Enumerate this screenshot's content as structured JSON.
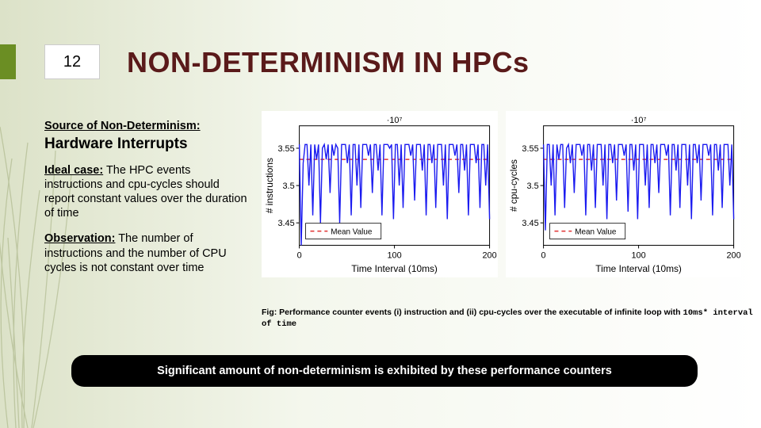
{
  "page_number": "12",
  "title": "NON-DETERMINISM IN HPCs",
  "left": {
    "source_label": "Source of Non-Determinism:",
    "hw_interrupts": "Hardware Interrupts",
    "ideal_label": "Ideal case:",
    "ideal_text": " The HPC events instructions and cpu-cycles should report constant values over the duration of time",
    "obs_label": "Observation:",
    "obs_text": " The number of instructions and the number of CPU cycles is not constant over time"
  },
  "caption": {
    "prefix": "Fig: Performance counter events (i) instruction and (ii) cpu-cycles over the executable of infinite loop with ",
    "mono": "10ms* interval of time"
  },
  "callout": "Significant amount of non-determinism is exhibited by these performance counters",
  "chart1": {
    "type": "line",
    "ylabel": "# instructions",
    "xlabel": "Time Interval (10ms)",
    "y_exponent": "·10⁷",
    "xlim": [
      0,
      200
    ],
    "xticks": [
      0,
      100,
      200
    ],
    "ylim": [
      3.42,
      3.58
    ],
    "yticks": [
      3.45,
      3.5,
      3.55
    ],
    "mean": 3.535,
    "legend": "Mean Value",
    "line_color": "#1a1af0",
    "mean_color": "#e03030",
    "axis_color": "#000000",
    "background": "#ffffff",
    "y_title_fontsize": 12,
    "x_title_fontsize": 12,
    "tick_fontsize": 11,
    "line_width": 1.4,
    "mean_dash": "5,4",
    "series": [
      3.555,
      3.42,
      3.53,
      3.555,
      3.555,
      3.5,
      3.555,
      3.46,
      3.555,
      3.535,
      3.555,
      3.45,
      3.55,
      3.555,
      3.535,
      3.555,
      3.49,
      3.555,
      3.54,
      3.555,
      3.55,
      3.45,
      3.555,
      3.555,
      3.555,
      3.53,
      3.555,
      3.46,
      3.555,
      3.555,
      3.5,
      3.555,
      3.47,
      3.555,
      3.555,
      3.555,
      3.54,
      3.555,
      3.49,
      3.555,
      3.555,
      3.52,
      3.555,
      3.46,
      3.555,
      3.555,
      3.555,
      3.55,
      3.555,
      3.455,
      3.555,
      3.555,
      3.5,
      3.555,
      3.47,
      3.555,
      3.555,
      3.555,
      3.54,
      3.555,
      3.48,
      3.555,
      3.555,
      3.555,
      3.52,
      3.555,
      3.46,
      3.555,
      3.555,
      3.53,
      3.555,
      3.47,
      3.555,
      3.555,
      3.555,
      3.5,
      3.555,
      3.455,
      3.555,
      3.555,
      3.555,
      3.54,
      3.555,
      3.49,
      3.555,
      3.555,
      3.52,
      3.555,
      3.46,
      3.555,
      3.555,
      3.555,
      3.53,
      3.555,
      3.47,
      3.555,
      3.555,
      3.5,
      3.555,
      3.455
    ]
  },
  "chart2": {
    "type": "line",
    "ylabel": "# cpu-cycles",
    "xlabel": "Time Interval (10ms)",
    "y_exponent": "·10⁷",
    "xlim": [
      0,
      200
    ],
    "xticks": [
      0,
      100,
      200
    ],
    "ylim": [
      3.42,
      3.58
    ],
    "yticks": [
      3.45,
      3.5,
      3.55
    ],
    "mean": 3.535,
    "legend": "Mean Value",
    "line_color": "#1a1af0",
    "mean_color": "#e03030",
    "axis_color": "#000000",
    "background": "#ffffff",
    "y_title_fontsize": 12,
    "x_title_fontsize": 12,
    "tick_fontsize": 11,
    "line_width": 1.4,
    "mean_dash": "5,4",
    "series": [
      3.555,
      3.44,
      3.555,
      3.555,
      3.5,
      3.555,
      3.46,
      3.555,
      3.535,
      3.555,
      3.555,
      3.47,
      3.55,
      3.555,
      3.53,
      3.555,
      3.49,
      3.555,
      3.555,
      3.555,
      3.54,
      3.555,
      3.46,
      3.555,
      3.555,
      3.52,
      3.555,
      3.47,
      3.555,
      3.555,
      3.555,
      3.5,
      3.555,
      3.455,
      3.555,
      3.555,
      3.53,
      3.555,
      3.48,
      3.555,
      3.555,
      3.555,
      3.54,
      3.555,
      3.465,
      3.555,
      3.555,
      3.52,
      3.555,
      3.455,
      3.555,
      3.555,
      3.555,
      3.5,
      3.555,
      3.47,
      3.555,
      3.555,
      3.53,
      3.555,
      3.49,
      3.555,
      3.555,
      3.555,
      3.54,
      3.555,
      3.46,
      3.555,
      3.555,
      3.52,
      3.555,
      3.47,
      3.555,
      3.555,
      3.555,
      3.5,
      3.555,
      3.455,
      3.555,
      3.555,
      3.53,
      3.555,
      3.48,
      3.555,
      3.555,
      3.555,
      3.54,
      3.555,
      3.46,
      3.555,
      3.555,
      3.52,
      3.555,
      3.47,
      3.555,
      3.555,
      3.555,
      3.5,
      3.555,
      3.455
    ]
  }
}
